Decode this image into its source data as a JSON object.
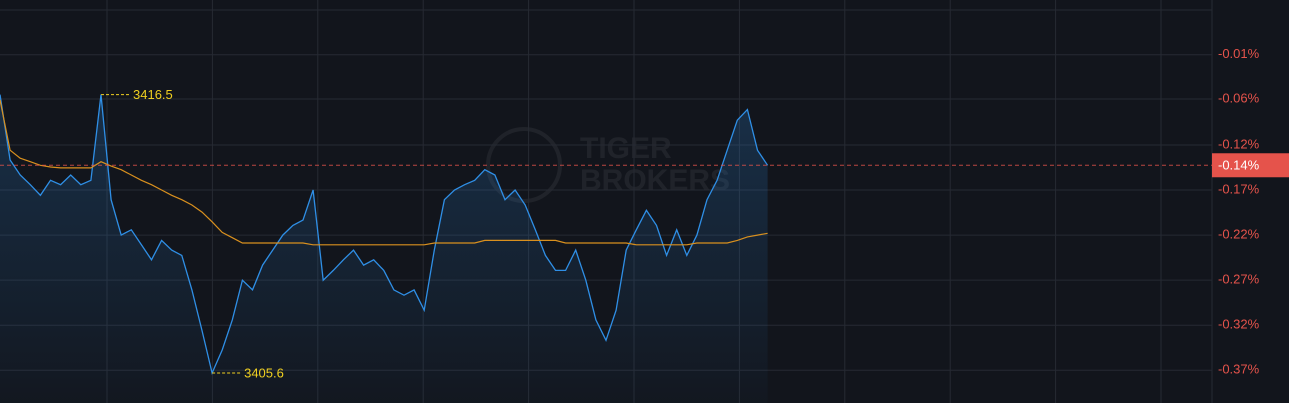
{
  "chart_data": {
    "type": "line",
    "watermark": [
      "TIGER",
      "BROKERS"
    ],
    "x": [
      0,
      2,
      4,
      6,
      8,
      10,
      12,
      14,
      16,
      18,
      20,
      22,
      24,
      26,
      28,
      30,
      32,
      34,
      36,
      38,
      40,
      42,
      44,
      46,
      48,
      50,
      52,
      54,
      56,
      58,
      60,
      62,
      64,
      66,
      68,
      70,
      72,
      74,
      76,
      78,
      80,
      82,
      84,
      86,
      88,
      90,
      92,
      94,
      96,
      98,
      100,
      102,
      104,
      106,
      108,
      110,
      112,
      114,
      116,
      118,
      120,
      122,
      124,
      126,
      128,
      130,
      132,
      134,
      136,
      138,
      140,
      142,
      144,
      146,
      148,
      150,
      152
    ],
    "xlim": [
      0,
      240
    ],
    "ylim": [
      -0.408,
      0.048
    ],
    "yticks": [
      {
        "value": -0.014,
        "label": "-0.01%"
      },
      {
        "value": -0.064,
        "label": "-0.06%"
      },
      {
        "value": -0.116,
        "label": "-0.12%"
      },
      {
        "value": -0.167,
        "label": "-0.17%"
      },
      {
        "value": -0.218,
        "label": "-0.22%"
      },
      {
        "value": -0.269,
        "label": "-0.27%"
      },
      {
        "value": -0.32,
        "label": "-0.32%"
      },
      {
        "value": -0.371,
        "label": "-0.37%"
      }
    ],
    "grid": true,
    "series": [
      {
        "color": "#2f8fe6",
        "values": [
          -0.059,
          -0.133,
          -0.15,
          -0.161,
          -0.173,
          -0.156,
          -0.161,
          -0.15,
          -0.161,
          -0.156,
          -0.059,
          -0.178,
          -0.218,
          -0.212,
          -0.229,
          -0.246,
          -0.224,
          -0.235,
          -0.241,
          -0.28,
          -0.326,
          -0.374,
          -0.348,
          -0.314,
          -0.269,
          -0.28,
          -0.252,
          -0.235,
          -0.218,
          -0.207,
          -0.201,
          -0.167,
          -0.269,
          -0.258,
          -0.246,
          -0.235,
          -0.252,
          -0.246,
          -0.258,
          -0.28,
          -0.286,
          -0.28,
          -0.303,
          -0.235,
          -0.178,
          -0.167,
          -0.161,
          -0.156,
          -0.144,
          -0.15,
          -0.178,
          -0.167,
          -0.184,
          -0.212,
          -0.241,
          -0.258,
          -0.258,
          -0.235,
          -0.269,
          -0.314,
          -0.337,
          -0.303,
          -0.235,
          -0.212,
          -0.19,
          -0.207,
          -0.241,
          -0.212,
          -0.241,
          -0.218,
          -0.178,
          -0.156,
          -0.122,
          -0.088,
          -0.076,
          -0.122,
          -0.139
        ]
      },
      {
        "color": "#d9901e",
        "values": [
          -0.065,
          -0.122,
          -0.131,
          -0.135,
          -0.139,
          -0.141,
          -0.142,
          -0.142,
          -0.142,
          -0.142,
          -0.135,
          -0.14,
          -0.144,
          -0.15,
          -0.156,
          -0.161,
          -0.167,
          -0.173,
          -0.178,
          -0.184,
          -0.192,
          -0.203,
          -0.215,
          -0.221,
          -0.227,
          -0.227,
          -0.227,
          -0.227,
          -0.227,
          -0.227,
          -0.227,
          -0.229,
          -0.229,
          -0.229,
          -0.229,
          -0.229,
          -0.229,
          -0.229,
          -0.229,
          -0.229,
          -0.229,
          -0.229,
          -0.229,
          -0.227,
          -0.227,
          -0.227,
          -0.227,
          -0.227,
          -0.224,
          -0.224,
          -0.224,
          -0.224,
          -0.224,
          -0.224,
          -0.224,
          -0.224,
          -0.227,
          -0.227,
          -0.227,
          -0.227,
          -0.227,
          -0.227,
          -0.227,
          -0.229,
          -0.229,
          -0.229,
          -0.229,
          -0.229,
          -0.229,
          -0.227,
          -0.227,
          -0.227,
          -0.227,
          -0.224,
          -0.22,
          -0.218,
          -0.216
        ]
      }
    ],
    "annotations": [
      {
        "label": "3416.5",
        "x": 20,
        "y": -0.059,
        "color": "#f0d020"
      },
      {
        "label": "3405.6",
        "x": 42,
        "y": -0.374,
        "color": "#f0d020"
      }
    ],
    "last": {
      "value": -0.139,
      "label": "-0.14%",
      "color": "#e5534b"
    }
  }
}
